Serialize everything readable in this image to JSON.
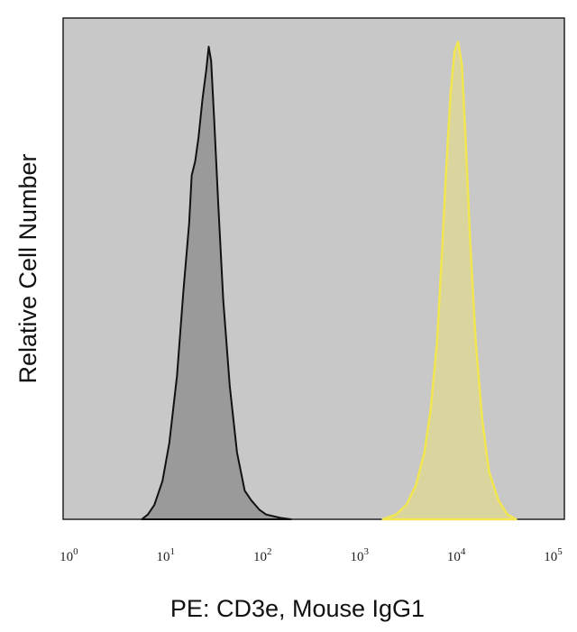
{
  "chart_data": {
    "type": "area",
    "xlabel": "PE: CD3e, Mouse IgG1",
    "ylabel": "Relative Cell Number",
    "xscale": "log",
    "xlim": [
      0.8,
      120000
    ],
    "ylim": [
      0,
      1.05
    ],
    "x_ticks": [
      {
        "base": "10",
        "exp": "0"
      },
      {
        "base": "10",
        "exp": "1"
      },
      {
        "base": "10",
        "exp": "2"
      },
      {
        "base": "10",
        "exp": "3"
      },
      {
        "base": "10",
        "exp": "4"
      },
      {
        "base": "10",
        "exp": "5"
      }
    ],
    "grid": false,
    "background": "#c8c8c8",
    "series": [
      {
        "fill": "#9a9a9a",
        "stroke": "#111111",
        "points": [
          [
            5.2,
            0
          ],
          [
            6,
            0.01
          ],
          [
            7,
            0.03
          ],
          [
            8.5,
            0.08
          ],
          [
            10,
            0.16
          ],
          [
            12,
            0.3
          ],
          [
            14,
            0.48
          ],
          [
            16,
            0.62
          ],
          [
            17,
            0.72
          ],
          [
            18.5,
            0.75
          ],
          [
            20,
            0.8
          ],
          [
            22,
            0.88
          ],
          [
            24,
            0.94
          ],
          [
            25.5,
            0.99
          ],
          [
            27,
            0.96
          ],
          [
            29,
            0.84
          ],
          [
            32,
            0.66
          ],
          [
            36,
            0.46
          ],
          [
            42,
            0.28
          ],
          [
            50,
            0.14
          ],
          [
            60,
            0.06
          ],
          [
            70,
            0.04
          ],
          [
            85,
            0.02
          ],
          [
            100,
            0.01
          ],
          [
            140,
            0.003
          ],
          [
            180,
            0
          ]
        ]
      },
      {
        "fill": "#ddd696",
        "stroke": "#f2e650",
        "points": [
          [
            1600,
            0
          ],
          [
            2200,
            0.01
          ],
          [
            2800,
            0.03
          ],
          [
            3500,
            0.07
          ],
          [
            4300,
            0.14
          ],
          [
            5000,
            0.23
          ],
          [
            5800,
            0.37
          ],
          [
            6500,
            0.55
          ],
          [
            7200,
            0.73
          ],
          [
            8000,
            0.89
          ],
          [
            8800,
            0.98
          ],
          [
            9600,
            1.0
          ],
          [
            10500,
            0.95
          ],
          [
            11500,
            0.79
          ],
          [
            12800,
            0.58
          ],
          [
            14500,
            0.38
          ],
          [
            17000,
            0.21
          ],
          [
            20000,
            0.1
          ],
          [
            25000,
            0.04
          ],
          [
            31000,
            0.01
          ],
          [
            38000,
            0
          ]
        ]
      }
    ]
  }
}
